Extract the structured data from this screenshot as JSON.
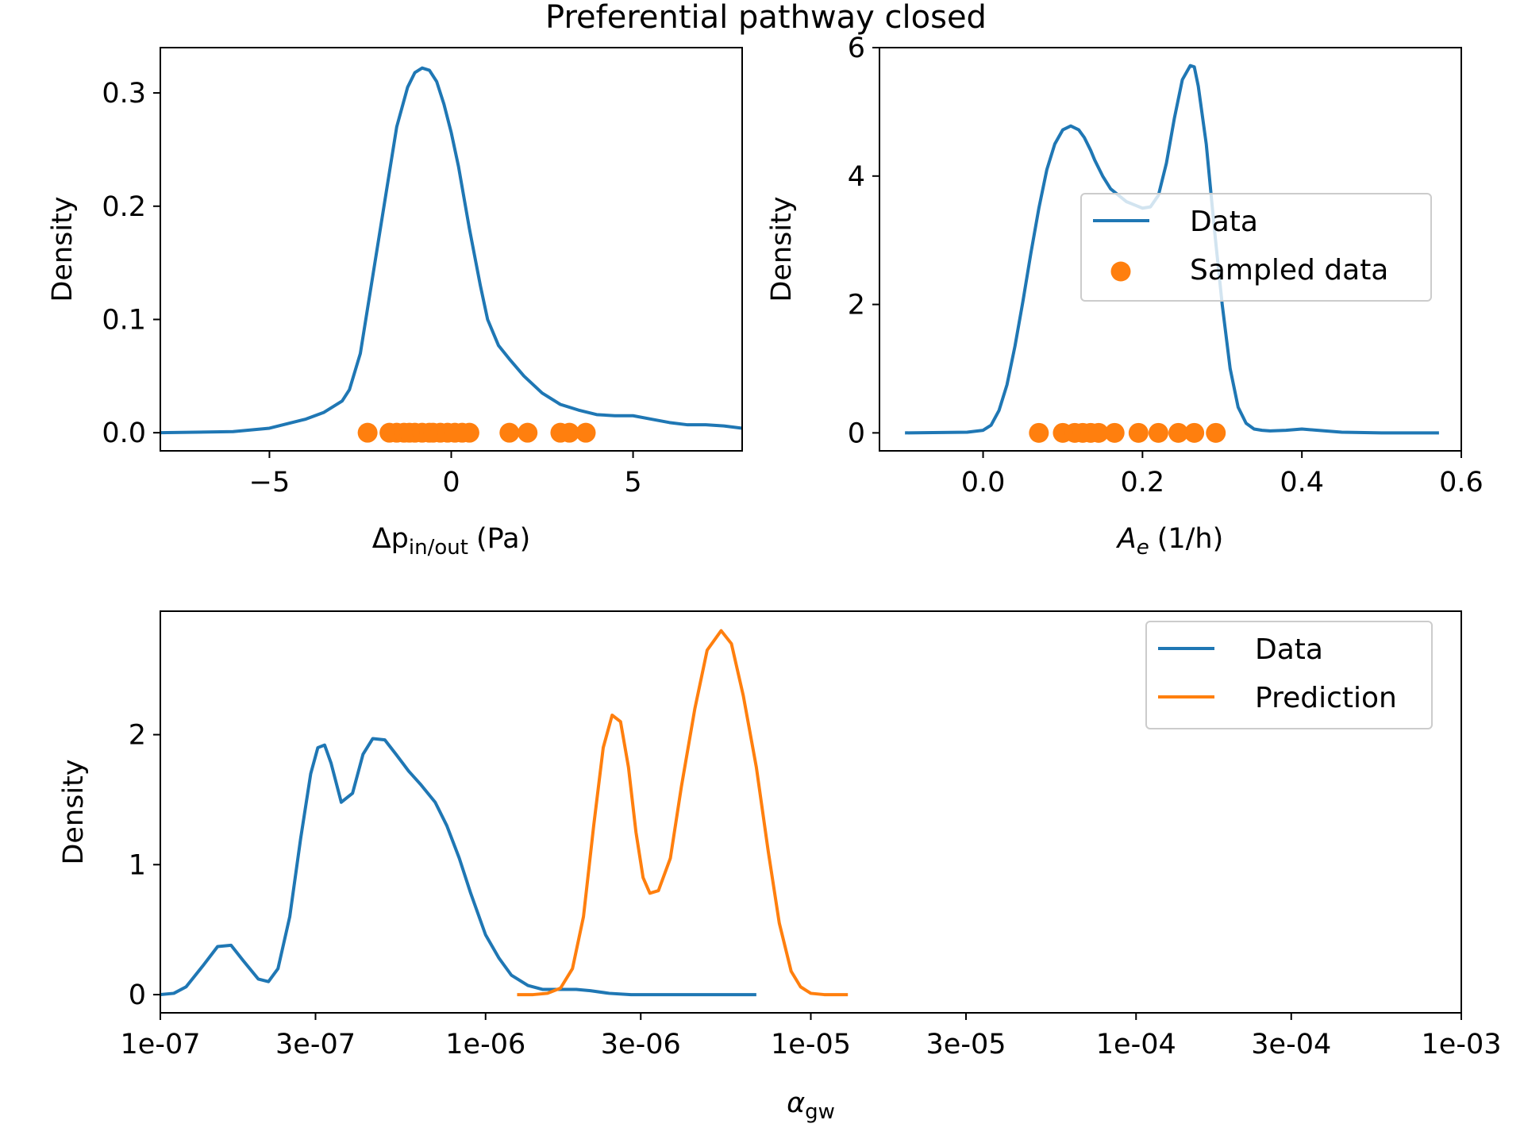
{
  "figure": {
    "title": "Preferential pathway closed"
  },
  "colors": {
    "data": "#1f77b4",
    "prediction": "#ff7f0e",
    "axes": "#000000",
    "legend_border": "#cccccc",
    "background": "#ffffff"
  },
  "chart_data": [
    {
      "type": "line",
      "panel": "top-left",
      "xlabel": "Δp",
      "xlabel_subscript": "in/out",
      "xlabel_unit": "(Pa)",
      "ylabel": "Density",
      "xlim": [
        -8,
        8
      ],
      "ylim": [
        -0.016,
        0.34
      ],
      "xticks": [
        -5,
        0,
        5
      ],
      "xtick_labels": [
        "−5",
        "0",
        "5"
      ],
      "yticks": [
        0.0,
        0.1,
        0.2,
        0.3
      ],
      "ytick_labels": [
        "0.0",
        "0.1",
        "0.2",
        "0.3"
      ],
      "grid": false,
      "legend": null,
      "series": [
        {
          "type": "line",
          "color": "#1f77b4",
          "x": [
            -8,
            -6,
            -5,
            -4,
            -3.5,
            -3,
            -2.8,
            -2.5,
            -2.3,
            -2,
            -1.7,
            -1.5,
            -1.2,
            -1,
            -0.8,
            -0.6,
            -0.4,
            -0.2,
            0,
            0.2,
            0.5,
            0.8,
            1,
            1.3,
            1.6,
            2,
            2.5,
            3,
            3.5,
            4,
            4.5,
            5,
            5.5,
            6,
            6.5,
            7,
            7.5,
            8
          ],
          "y": [
            0.0,
            0.001,
            0.004,
            0.012,
            0.018,
            0.028,
            0.038,
            0.07,
            0.11,
            0.17,
            0.23,
            0.27,
            0.305,
            0.318,
            0.322,
            0.32,
            0.31,
            0.29,
            0.265,
            0.235,
            0.18,
            0.13,
            0.1,
            0.077,
            0.065,
            0.05,
            0.035,
            0.025,
            0.02,
            0.016,
            0.015,
            0.015,
            0.012,
            0.009,
            0.007,
            0.007,
            0.006,
            0.004
          ]
        },
        {
          "type": "scatter",
          "color": "#ff7f0e",
          "x": [
            -2.3,
            -1.7,
            -1.5,
            -1.3,
            -1.15,
            -1.0,
            -0.8,
            -0.6,
            -0.5,
            -0.3,
            -0.1,
            0.1,
            0.3,
            0.5,
            1.6,
            2.1,
            3.0,
            3.25,
            3.7
          ],
          "y": [
            0,
            0,
            0,
            0,
            0,
            0,
            0,
            0,
            0,
            0,
            0,
            0,
            0,
            0,
            0,
            0,
            0,
            0,
            0
          ]
        }
      ]
    },
    {
      "type": "line",
      "panel": "top-right",
      "xlabel": "A",
      "xlabel_subscript": "e",
      "xlabel_unit": "(1/h)",
      "ylabel": "Density",
      "xlim": [
        -0.13,
        0.6
      ],
      "ylim": [
        -0.28,
        6.0
      ],
      "xticks": [
        0.0,
        0.2,
        0.4,
        0.6
      ],
      "xtick_labels": [
        "0.0",
        "0.2",
        "0.4",
        "0.6"
      ],
      "yticks": [
        0,
        2,
        4,
        6
      ],
      "ytick_labels": [
        "0",
        "2",
        "4",
        "6"
      ],
      "grid": false,
      "legend": {
        "position": "center-right",
        "entries": [
          {
            "label": "Data",
            "marker": "line",
            "color": "#1f77b4"
          },
          {
            "label": "Sampled data",
            "marker": "dot",
            "color": "#ff7f0e"
          }
        ]
      },
      "series": [
        {
          "type": "line",
          "name": "Data",
          "color": "#1f77b4",
          "x": [
            -0.098,
            -0.02,
            0.0,
            0.01,
            0.02,
            0.03,
            0.04,
            0.05,
            0.06,
            0.07,
            0.08,
            0.09,
            0.1,
            0.11,
            0.12,
            0.127,
            0.135,
            0.14,
            0.15,
            0.16,
            0.17,
            0.18,
            0.19,
            0.2,
            0.21,
            0.22,
            0.23,
            0.24,
            0.25,
            0.26,
            0.265,
            0.27,
            0.28,
            0.29,
            0.3,
            0.31,
            0.32,
            0.33,
            0.34,
            0.35,
            0.36,
            0.38,
            0.4,
            0.42,
            0.45,
            0.5,
            0.572
          ],
          "y": [
            0.0,
            0.01,
            0.04,
            0.12,
            0.35,
            0.75,
            1.35,
            2.05,
            2.8,
            3.5,
            4.1,
            4.5,
            4.72,
            4.78,
            4.72,
            4.6,
            4.4,
            4.25,
            4.0,
            3.8,
            3.7,
            3.6,
            3.55,
            3.5,
            3.52,
            3.7,
            4.2,
            4.9,
            5.5,
            5.72,
            5.7,
            5.4,
            4.5,
            3.2,
            2.0,
            1.0,
            0.4,
            0.15,
            0.06,
            0.04,
            0.03,
            0.04,
            0.06,
            0.04,
            0.01,
            0.0,
            0.0
          ]
        },
        {
          "type": "scatter",
          "name": "Sampled data",
          "color": "#ff7f0e",
          "x": [
            0.07,
            0.1,
            0.115,
            0.125,
            0.135,
            0.145,
            0.165,
            0.195,
            0.22,
            0.245,
            0.265,
            0.292
          ],
          "y": [
            0,
            0,
            0,
            0,
            0,
            0,
            0,
            0,
            0,
            0,
            0,
            0
          ]
        }
      ]
    },
    {
      "type": "line",
      "panel": "bottom",
      "xscale": "log",
      "xlabel": "α",
      "xlabel_subscript": "gw",
      "xlabel_unit": "",
      "ylabel": "Density",
      "xlim": [
        1e-07,
        0.001
      ],
      "ylim": [
        -0.14,
        2.95
      ],
      "xticks": [
        1e-07,
        3e-07,
        1e-06,
        3e-06,
        1e-05,
        3e-05,
        0.0001,
        0.0003,
        0.001
      ],
      "xtick_labels": [
        "1e-07",
        "3e-07",
        "1e-06",
        "3e-06",
        "1e-05",
        "3e-05",
        "1e-04",
        "3e-04",
        "1e-03"
      ],
      "yticks": [
        0,
        1,
        2
      ],
      "ytick_labels": [
        "0",
        "1",
        "2"
      ],
      "grid": false,
      "legend": {
        "position": "top-right",
        "entries": [
          {
            "label": "Data",
            "marker": "line",
            "color": "#1f77b4"
          },
          {
            "label": "Prediction",
            "marker": "line",
            "color": "#ff7f0e"
          }
        ]
      },
      "series": [
        {
          "type": "line",
          "name": "Data",
          "color": "#1f77b4",
          "x": [
            1e-07,
            1.1e-07,
            1.2e-07,
            1.35e-07,
            1.5e-07,
            1.65e-07,
            1.8e-07,
            2e-07,
            2.15e-07,
            2.3e-07,
            2.5e-07,
            2.7e-07,
            2.9e-07,
            3.05e-07,
            3.2e-07,
            3.35e-07,
            3.6e-07,
            3.9e-07,
            4.2e-07,
            4.5e-07,
            4.9e-07,
            5.3e-07,
            5.8e-07,
            6.3e-07,
            7e-07,
            7.6e-07,
            8.3e-07,
            9e-07,
            1e-06,
            1.1e-06,
            1.2e-06,
            1.35e-06,
            1.5e-06,
            1.7e-06,
            1.9e-06,
            2.1e-06,
            2.4e-06,
            2.8e-06,
            3.5e-06,
            5e-06,
            6.8e-06
          ],
          "y": [
            0.0,
            0.01,
            0.06,
            0.22,
            0.37,
            0.38,
            0.26,
            0.12,
            0.1,
            0.2,
            0.6,
            1.2,
            1.7,
            1.9,
            1.92,
            1.78,
            1.48,
            1.55,
            1.85,
            1.97,
            1.96,
            1.85,
            1.72,
            1.62,
            1.48,
            1.3,
            1.05,
            0.78,
            0.46,
            0.28,
            0.15,
            0.07,
            0.04,
            0.04,
            0.04,
            0.03,
            0.01,
            0.0,
            0.0,
            0.0,
            0.0
          ]
        },
        {
          "type": "line",
          "name": "Prediction",
          "color": "#ff7f0e",
          "x": [
            1.25e-06,
            1.4e-06,
            1.55e-06,
            1.7e-06,
            1.85e-06,
            2e-06,
            2.15e-06,
            2.3e-06,
            2.45e-06,
            2.6e-06,
            2.75e-06,
            2.9e-06,
            3.05e-06,
            3.2e-06,
            3.4e-06,
            3.7e-06,
            4e-06,
            4.4e-06,
            4.8e-06,
            5.3e-06,
            5.7e-06,
            6.2e-06,
            6.8e-06,
            7.4e-06,
            8e-06,
            8.7e-06,
            9.3e-06,
            1e-05,
            1.1e-05,
            1.3e-05
          ],
          "y": [
            0.0,
            0.0,
            0.01,
            0.05,
            0.2,
            0.6,
            1.3,
            1.9,
            2.15,
            2.1,
            1.75,
            1.25,
            0.9,
            0.78,
            0.8,
            1.05,
            1.6,
            2.2,
            2.65,
            2.8,
            2.7,
            2.3,
            1.75,
            1.1,
            0.55,
            0.18,
            0.06,
            0.01,
            0.0,
            0.0
          ]
        }
      ]
    }
  ]
}
